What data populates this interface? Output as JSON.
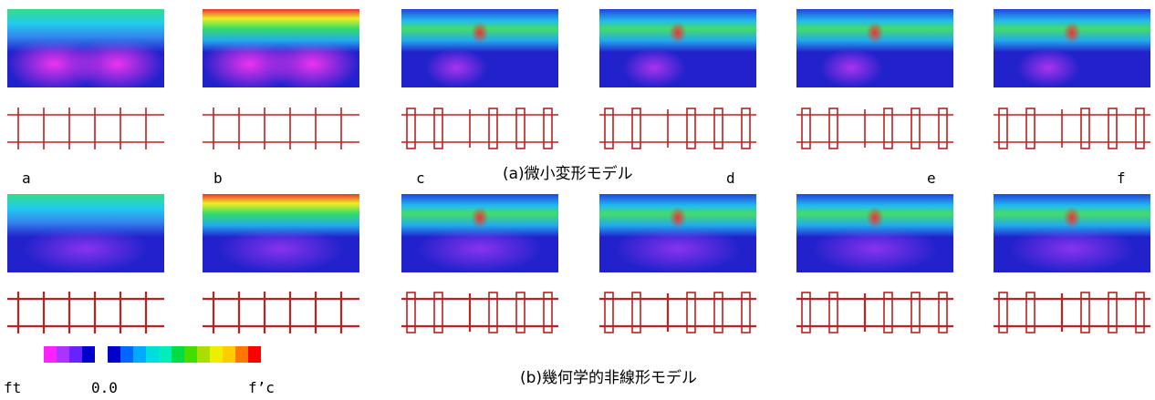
{
  "panels": [
    {
      "label": "a"
    },
    {
      "label": "b"
    },
    {
      "label": "c"
    },
    {
      "label": "d"
    },
    {
      "label": "e"
    },
    {
      "label": "f"
    }
  ],
  "captions": [
    "(a)微小変形モデル",
    "(b)幾何学的非線形モデル"
  ],
  "legend": {
    "min": "ft",
    "zero": "0.0",
    "max": "f’c"
  }
}
